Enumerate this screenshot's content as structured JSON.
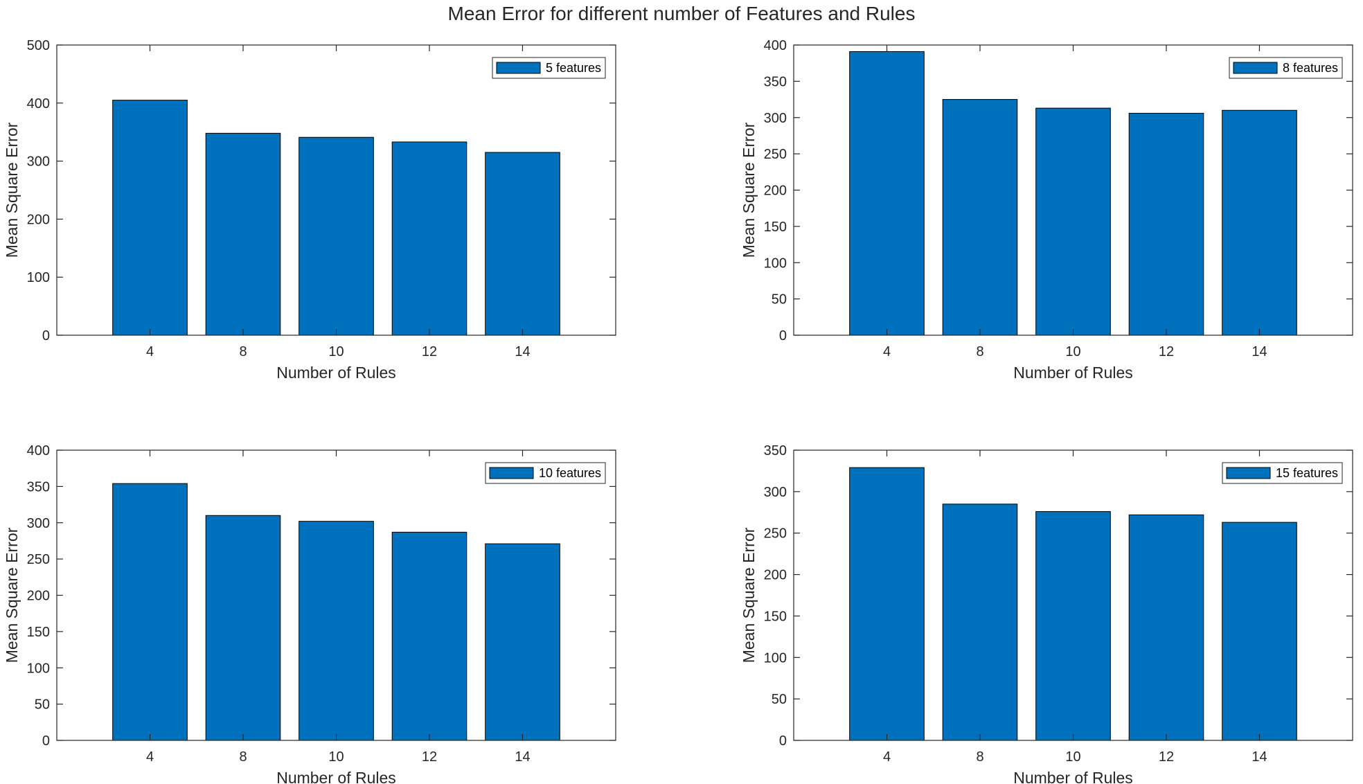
{
  "title": "Mean Error for different number of Features and Rules",
  "colors": {
    "bar": "#0072BD",
    "bar_edge": "#000000",
    "axis": "#262626"
  },
  "chart_data": [
    {
      "type": "bar",
      "categories": [
        "4",
        "8",
        "10",
        "12",
        "14"
      ],
      "series": [
        {
          "name": "5 features",
          "values": [
            405,
            348,
            341,
            333,
            315
          ]
        }
      ],
      "xlabel": "Number of Rules",
      "ylabel": "Mean Square Error",
      "ylim": [
        0,
        500
      ],
      "yticks": [
        "0",
        "100",
        "200",
        "300",
        "400",
        "500"
      ],
      "legend": "top-right",
      "grid": false
    },
    {
      "type": "bar",
      "categories": [
        "4",
        "8",
        "10",
        "12",
        "14"
      ],
      "series": [
        {
          "name": "8 features",
          "values": [
            391,
            325,
            313,
            306,
            310
          ]
        }
      ],
      "xlabel": "Number of Rules",
      "ylabel": "Mean Square Error",
      "ylim": [
        0,
        400
      ],
      "yticks": [
        "0",
        "50",
        "100",
        "150",
        "200",
        "250",
        "300",
        "350",
        "400"
      ],
      "legend": "top-right",
      "grid": false
    },
    {
      "type": "bar",
      "categories": [
        "4",
        "8",
        "10",
        "12",
        "14"
      ],
      "series": [
        {
          "name": "10 features",
          "values": [
            354,
            310,
            302,
            287,
            271
          ]
        }
      ],
      "xlabel": "Number of Rules",
      "ylabel": "Mean Square Error",
      "ylim": [
        0,
        400
      ],
      "yticks": [
        "0",
        "50",
        "100",
        "150",
        "200",
        "250",
        "300",
        "350",
        "400"
      ],
      "legend": "top-right",
      "grid": false
    },
    {
      "type": "bar",
      "categories": [
        "4",
        "8",
        "10",
        "12",
        "14"
      ],
      "series": [
        {
          "name": "15 features",
          "values": [
            329,
            285,
            276,
            272,
            263
          ]
        }
      ],
      "xlabel": "Number of Rules",
      "ylabel": "Mean Square Error",
      "ylim": [
        0,
        350
      ],
      "yticks": [
        "0",
        "50",
        "100",
        "150",
        "200",
        "250",
        "300",
        "350"
      ],
      "legend": "top-right",
      "grid": false
    }
  ]
}
